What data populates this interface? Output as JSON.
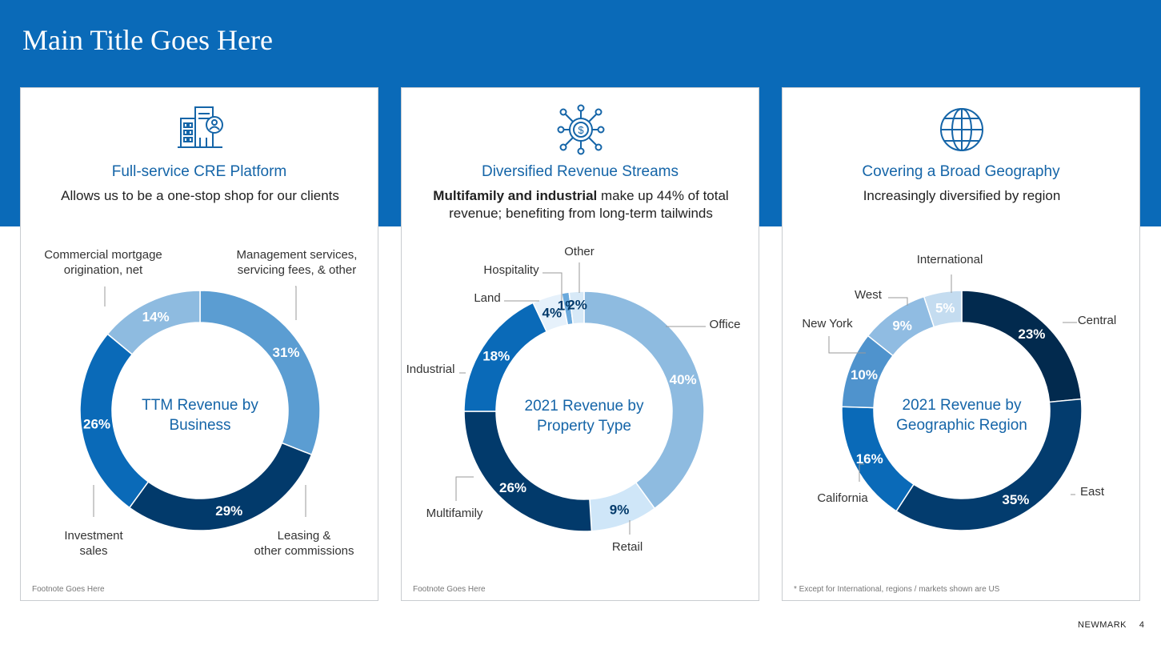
{
  "title": "Main Title Goes Here",
  "footer": {
    "brand": "NEWMARK",
    "page": "4"
  },
  "panels": [
    {
      "icon": "building-person-icon",
      "heading": "Full-service CRE Platform",
      "subtitle_bold": "",
      "subtitle": "Allows us to be a one-stop shop for our clients",
      "footnote": "Footnote Goes Here"
    },
    {
      "icon": "revenue-network-icon",
      "heading": "Diversified Revenue Streams",
      "subtitle_bold": "Multifamily and industrial",
      "subtitle": " make up 44% of total revenue; benefiting from long-term tailwinds",
      "footnote": "Footnote Goes Here"
    },
    {
      "icon": "globe-icon",
      "heading": "Covering a Broad Geography",
      "subtitle_bold": "",
      "subtitle": "Increasingly diversified by region",
      "footnote": "* Except for International, regions / markets shown are US"
    }
  ],
  "colors": {
    "brand_blue": "#0a6ab8",
    "heading_blue": "#1565a8"
  },
  "chart_data": [
    {
      "type": "pie",
      "title": "TTM Revenue by Business",
      "categories": [
        "Management services, servicing fees, & other",
        "Leasing & other commissions",
        "Investment sales",
        "Commercial mortgage origination, net"
      ],
      "values": [
        31,
        29,
        26,
        14
      ],
      "value_labels": [
        "31%",
        "29%",
        "26%",
        "14%"
      ],
      "colors": [
        "#5b9dd2",
        "#023a6b",
        "#0a6ab8",
        "#8ebbe0"
      ]
    },
    {
      "type": "pie",
      "title": "2021 Revenue by Property Type",
      "categories": [
        "Office",
        "Retail",
        "Multifamily",
        "Industrial",
        "Land",
        "Hospitality",
        "Other"
      ],
      "values": [
        40,
        9,
        26,
        18,
        4,
        1,
        2
      ],
      "value_labels": [
        "40%",
        "9%",
        "26%",
        "18%",
        "4%",
        "1%",
        "2%"
      ],
      "colors": [
        "#8ebbe0",
        "#cfe6f8",
        "#023a6b",
        "#0a6ab8",
        "#e6f1fb",
        "#6aa9dc",
        "#d7e9f7"
      ]
    },
    {
      "type": "pie",
      "title": "2021 Revenue by Geographic Region",
      "categories": [
        "Central",
        "East",
        "California",
        "New York",
        "West",
        "International"
      ],
      "values": [
        23,
        35,
        16,
        10,
        9,
        5
      ],
      "value_labels": [
        "23%",
        "35%",
        "16%",
        "10%",
        "9%",
        "5%"
      ],
      "colors": [
        "#022a4e",
        "#033c6e",
        "#0a6ab8",
        "#4f93cd",
        "#90bce2",
        "#c4dcf0"
      ]
    }
  ]
}
